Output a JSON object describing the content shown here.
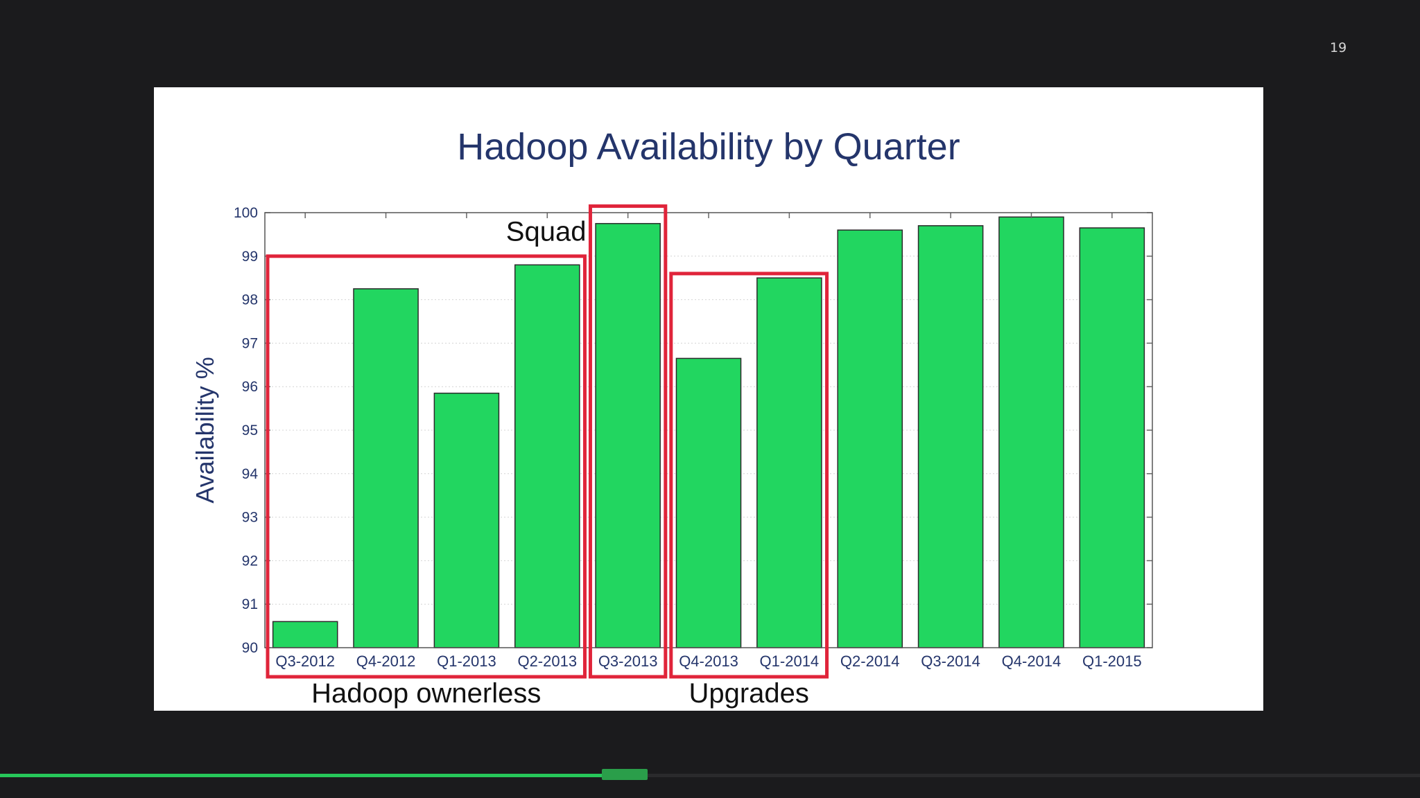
{
  "slide": {
    "page_number": "19"
  },
  "progress": {
    "fraction": 0.44
  },
  "colors": {
    "background": "#1b1b1d",
    "bar_fill": "#22d660",
    "bar_stroke": "#2a2a2a",
    "title": "#24356b",
    "highlight": "#e0243a",
    "progress": "#27c75a"
  },
  "chart_data": {
    "type": "bar",
    "title": "Hadoop Availability by Quarter",
    "xlabel": "",
    "ylabel": "Availability %",
    "ylim": [
      90,
      100
    ],
    "yticks": [
      90,
      91,
      92,
      93,
      94,
      95,
      96,
      97,
      98,
      99,
      100
    ],
    "grid": true,
    "categories": [
      "Q3-2012",
      "Q4-2012",
      "Q1-2013",
      "Q2-2013",
      "Q3-2013",
      "Q4-2013",
      "Q1-2014",
      "Q2-2014",
      "Q3-2014",
      "Q4-2014",
      "Q1-2015"
    ],
    "values": [
      90.6,
      98.25,
      95.85,
      98.8,
      99.75,
      96.65,
      98.5,
      99.6,
      99.7,
      99.9,
      99.65
    ],
    "highlight_groups": [
      {
        "label": "Hadoop ownerless",
        "from": 0,
        "to": 3,
        "top_value": 99.0,
        "label_position": "below"
      },
      {
        "label": "Squad",
        "from": 4,
        "to": 4,
        "top_value": 100.15,
        "label_position": "left"
      },
      {
        "label": "Upgrades",
        "from": 5,
        "to": 6,
        "top_value": 98.6,
        "label_position": "below"
      }
    ]
  }
}
